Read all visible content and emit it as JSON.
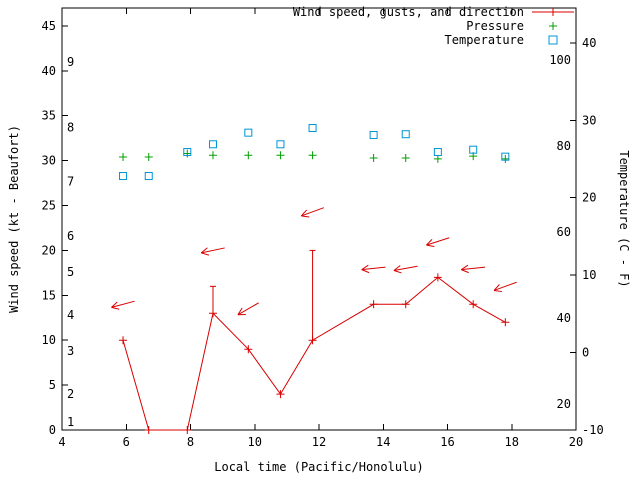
{
  "figure": {
    "xlabel": "Local time (Pacific/Honolulu)",
    "ylabel_left": "Wind speed (kt - Beaufort)",
    "ylabel_right": "Temperature (C - F)"
  },
  "colors": {
    "wind": "#d80000",
    "pressure": "#00a000",
    "temperature": "#0094d4",
    "axis": "#000000",
    "background": "#ffffff"
  },
  "legend": {
    "items": [
      {
        "label": "Wind speed, gusts, and direction",
        "series": "wind"
      },
      {
        "label": "Pressure",
        "series": "pressure"
      },
      {
        "label": "Temperature",
        "series": "temperature"
      }
    ]
  },
  "chart_data": {
    "type": "line",
    "x": [
      5.9,
      6.7,
      7.9,
      8.7,
      9.8,
      10.8,
      11.8,
      13.7,
      14.7,
      15.7,
      16.8,
      17.8
    ],
    "x_axis": {
      "label": "Local time (Pacific/Honolulu)",
      "range": [
        4,
        20
      ],
      "ticks": [
        4,
        6,
        8,
        10,
        12,
        14,
        16,
        18,
        20
      ]
    },
    "y_left_axis": {
      "label": "Wind speed (kt - Beaufort)",
      "range": [
        0,
        47
      ],
      "ticks": [
        0,
        5,
        10,
        15,
        20,
        25,
        30,
        35,
        40,
        45
      ],
      "beaufort_labels": [
        {
          "label": "1",
          "kt": 0.9
        },
        {
          "label": "2",
          "kt": 4.0
        },
        {
          "label": "3",
          "kt": 8.8
        },
        {
          "label": "4",
          "kt": 12.8
        },
        {
          "label": "5",
          "kt": 17.6
        },
        {
          "label": "6",
          "kt": 21.6
        },
        {
          "label": "7",
          "kt": 27.7
        },
        {
          "label": "8",
          "kt": 33.7
        },
        {
          "label": "9",
          "kt": 41.0
        }
      ]
    },
    "y_right_axis": {
      "label": "Temperature (C - F)",
      "range": [
        -10,
        44.5
      ],
      "ticks_celsius": [
        -10,
        0,
        10,
        20,
        30,
        40
      ],
      "fahrenheit_labels": [
        20,
        40,
        60,
        80,
        100
      ]
    },
    "series": [
      {
        "name": "Wind speed, gusts, and direction",
        "type": "line+markers",
        "axis": "left",
        "values": [
          10,
          0,
          0,
          13,
          9,
          4,
          10,
          14,
          14,
          17,
          14,
          12
        ],
        "gusts": [
          null,
          null,
          null,
          16,
          null,
          null,
          20,
          null,
          null,
          null,
          null,
          null
        ]
      },
      {
        "name": "Pressure",
        "type": "points",
        "axis": "left",
        "values": [
          30.4,
          30.4,
          30.8,
          30.6,
          30.6,
          30.6,
          30.6,
          30.3,
          30.3,
          30.2,
          30.5,
          30.2
        ]
      },
      {
        "name": "Temperature",
        "type": "points",
        "axis": "right",
        "values": [
          22.8,
          22.8,
          25.9,
          26.9,
          28.4,
          26.9,
          29.0,
          28.1,
          28.2,
          25.9,
          26.2,
          25.3
        ]
      }
    ],
    "wind_arrows": [
      {
        "x": 5.9,
        "kt": 14.0,
        "angle_deg": 165
      },
      {
        "x": 8.7,
        "kt": 20.0,
        "angle_deg": 168
      },
      {
        "x": 9.8,
        "kt": 13.5,
        "angle_deg": 150
      },
      {
        "x": 11.8,
        "kt": 24.3,
        "angle_deg": 160
      },
      {
        "x": 13.7,
        "kt": 18.0,
        "angle_deg": 174
      },
      {
        "x": 14.7,
        "kt": 18.0,
        "angle_deg": 170
      },
      {
        "x": 15.7,
        "kt": 21.0,
        "angle_deg": 162
      },
      {
        "x": 16.8,
        "kt": 18.0,
        "angle_deg": 174
      },
      {
        "x": 17.8,
        "kt": 16.0,
        "angle_deg": 160
      }
    ]
  }
}
